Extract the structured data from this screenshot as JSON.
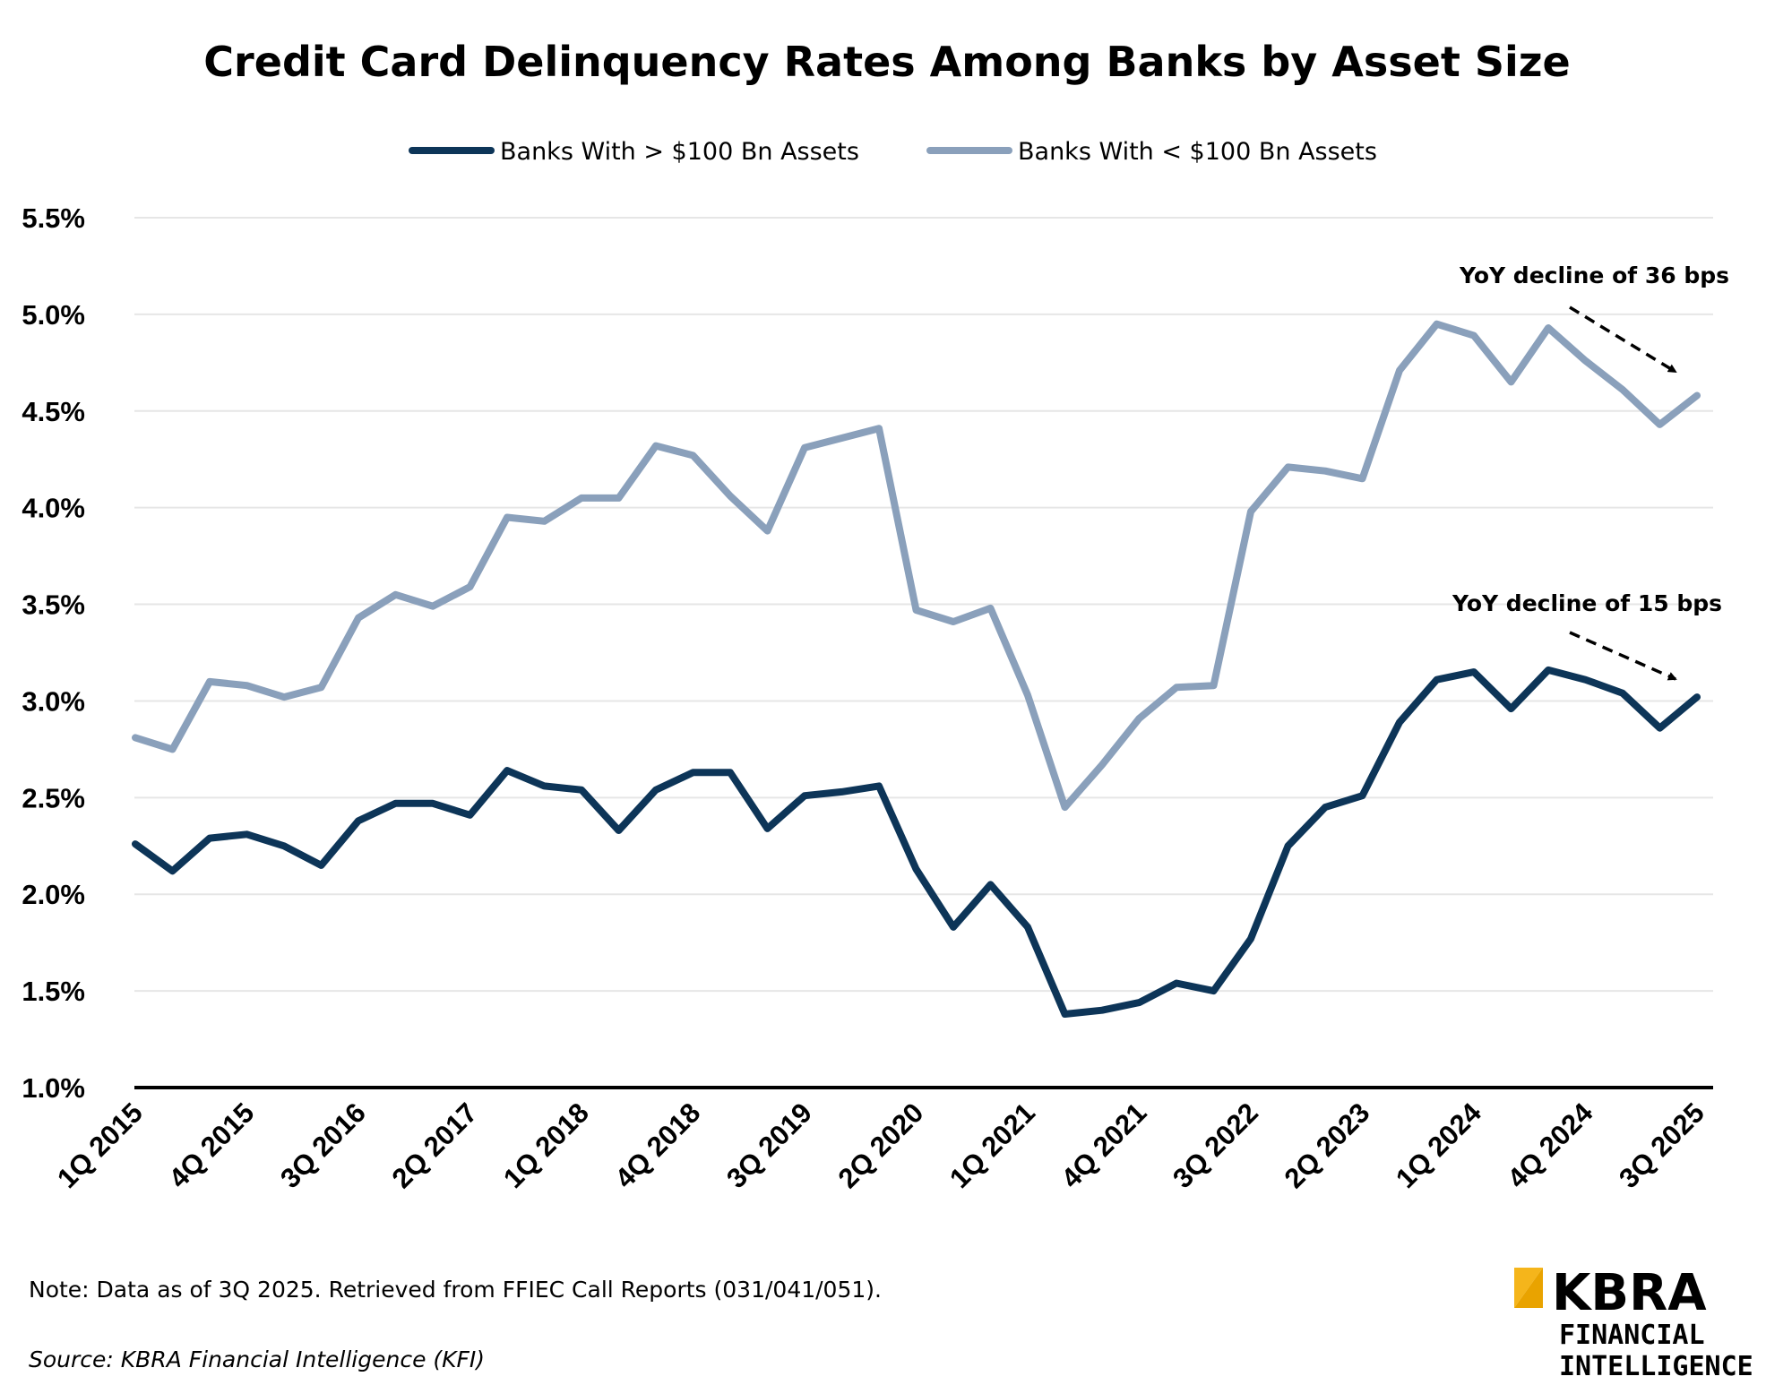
{
  "chart_data": {
    "type": "line",
    "title": "Credit Card Delinquency Rates Among Banks by Asset Size",
    "xlabel": "",
    "ylabel": "",
    "ylim": [
      1.0,
      5.5
    ],
    "y_ticks": [
      "1.0%",
      "1.5%",
      "2.0%",
      "2.5%",
      "3.0%",
      "3.5%",
      "4.0%",
      "4.5%",
      "5.0%",
      "5.5%"
    ],
    "y_tick_values": [
      1.0,
      1.5,
      2.0,
      2.5,
      3.0,
      3.5,
      4.0,
      4.5,
      5.0,
      5.5
    ],
    "x_tick_labels": [
      "1Q 2015",
      "4Q 2015",
      "3Q 2016",
      "2Q 2017",
      "1Q 2018",
      "4Q 2018",
      "3Q 2019",
      "2Q 2020",
      "1Q 2021",
      "4Q 2021",
      "3Q 2022",
      "2Q 2023",
      "1Q 2024",
      "4Q 2024",
      "3Q 2025"
    ],
    "x_tick_every": 3,
    "grid": "horizontal",
    "legend_position": "top-center",
    "categories": [
      "1Q 2015",
      "2Q 2015",
      "3Q 2015",
      "4Q 2015",
      "1Q 2016",
      "2Q 2016",
      "3Q 2016",
      "4Q 2016",
      "1Q 2017",
      "2Q 2017",
      "3Q 2017",
      "4Q 2017",
      "1Q 2018",
      "2Q 2018",
      "3Q 2018",
      "4Q 2018",
      "1Q 2019",
      "2Q 2019",
      "3Q 2019",
      "4Q 2019",
      "1Q 2020",
      "2Q 2020",
      "3Q 2020",
      "4Q 2020",
      "1Q 2021",
      "2Q 2021",
      "3Q 2021",
      "4Q 2021",
      "1Q 2022",
      "2Q 2022",
      "3Q 2022",
      "4Q 2022",
      "1Q 2023",
      "2Q 2023",
      "3Q 2023",
      "4Q 2023",
      "1Q 2024",
      "2Q 2024",
      "3Q 2024",
      "4Q 2024",
      "1Q 2025",
      "2Q 2025",
      "3Q 2025"
    ],
    "series": [
      {
        "name": "Banks With > $100 Bn Assets",
        "color": "#0d3558",
        "values": [
          2.26,
          2.12,
          2.29,
          2.31,
          2.25,
          2.15,
          2.38,
          2.47,
          2.47,
          2.41,
          2.64,
          2.56,
          2.54,
          2.33,
          2.54,
          2.63,
          2.63,
          2.34,
          2.51,
          2.53,
          2.56,
          2.13,
          1.83,
          2.05,
          1.83,
          1.38,
          1.4,
          1.44,
          1.54,
          1.5,
          1.77,
          2.25,
          2.45,
          2.51,
          2.89,
          3.11,
          3.15,
          2.96,
          3.16,
          3.11,
          3.04,
          2.86,
          3.02
        ]
      },
      {
        "name": "Banks With < $100 Bn Assets",
        "color": "#8aa0bb",
        "values": [
          2.81,
          2.75,
          3.1,
          3.08,
          3.02,
          3.07,
          3.43,
          3.55,
          3.49,
          3.59,
          3.95,
          3.93,
          4.05,
          4.05,
          4.32,
          4.27,
          4.06,
          3.88,
          4.31,
          4.36,
          4.41,
          3.47,
          3.41,
          3.48,
          3.03,
          2.45,
          2.67,
          2.91,
          3.07,
          3.08,
          3.98,
          4.21,
          4.19,
          4.15,
          4.71,
          4.95,
          4.89,
          4.65,
          4.93,
          4.76,
          4.61,
          4.43,
          4.58
        ]
      }
    ],
    "annotations": [
      {
        "text": "YoY decline of 36 bps",
        "series": 1
      },
      {
        "text": "YoY decline of 15 bps",
        "series": 0
      }
    ]
  },
  "footer": {
    "note": "Note: Data as of 3Q 2025. Retrieved from FFIEC Call Reports (031/041/051).",
    "source": "Source: KBRA Financial Intelligence (KFI)"
  },
  "logo": {
    "main": "KBRA",
    "line1": "FINANCIAL",
    "line2": "INTELLIGENCE",
    "accent_color": "#f5b51b"
  }
}
